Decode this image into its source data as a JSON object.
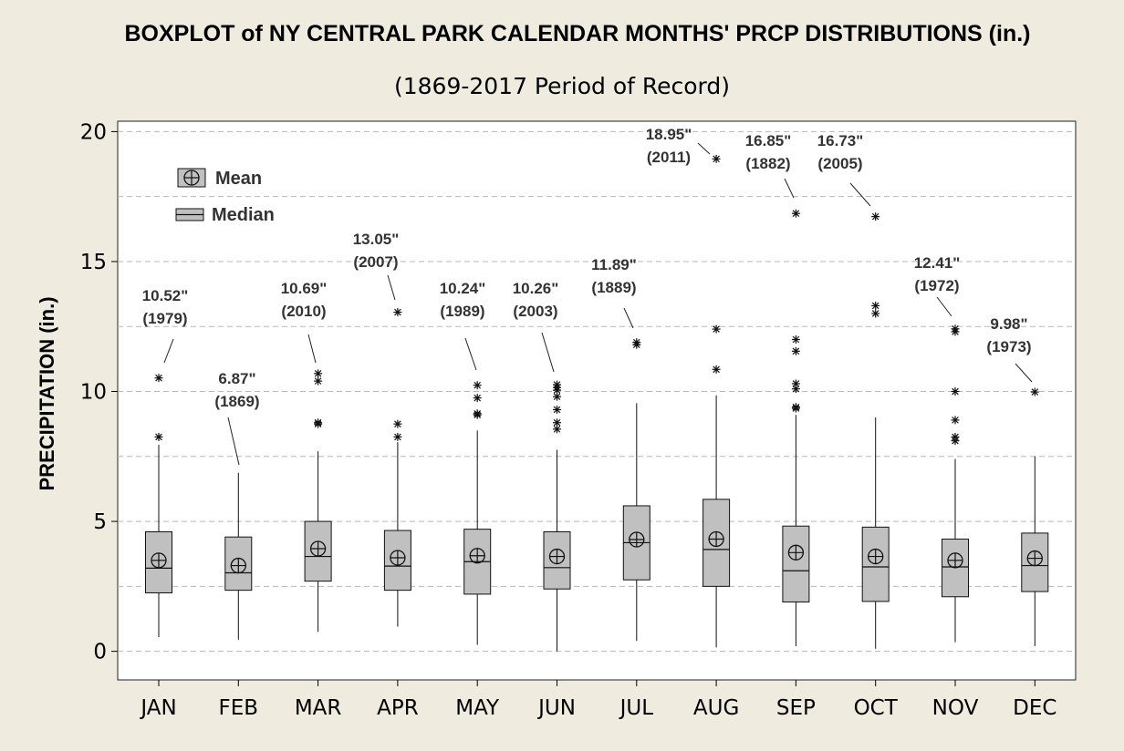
{
  "chart_data": {
    "type": "boxplot",
    "title": "BOXPLOT of NY CENTRAL PARK CALENDAR MONTHS' PRCP DISTRIBUTIONS (in.)",
    "subtitle": "(1869-2017 Period of Record)",
    "xlabel": "",
    "ylabel": "PRECIPITATION (in.)",
    "ylim": [
      -1.1,
      20.4
    ],
    "yticks": [
      0,
      5,
      10,
      15,
      20
    ],
    "grid": "horizontal dashed",
    "legend_position": "top-left",
    "legend": [
      {
        "key": "mean",
        "label": "Mean"
      },
      {
        "key": "median",
        "label": "Median"
      }
    ],
    "colors": {
      "box_fill": "#c0c0c0",
      "plot_bg": "#ffffff",
      "page_bg": "#efebdf",
      "gridline": "#b8b8b8",
      "annotation": "#333333"
    },
    "categories": [
      "JAN",
      "FEB",
      "MAR",
      "APR",
      "MAY",
      "JUN",
      "JUL",
      "AUG",
      "SEP",
      "OCT",
      "NOV",
      "DEC"
    ],
    "boxes": [
      {
        "month": "JAN",
        "whisker_low": 0.55,
        "q1": 2.25,
        "median": 3.2,
        "q3": 4.6,
        "whisker_high": 7.95,
        "mean": 3.5,
        "outliers": [
          8.25,
          10.52
        ]
      },
      {
        "month": "FEB",
        "whisker_low": 0.45,
        "q1": 2.35,
        "median": 3.02,
        "q3": 4.4,
        "whisker_high": 6.87,
        "mean": 3.3,
        "outliers": []
      },
      {
        "month": "MAR",
        "whisker_low": 0.75,
        "q1": 2.7,
        "median": 3.65,
        "q3": 5.0,
        "whisker_high": 7.7,
        "mean": 3.95,
        "outliers": [
          8.75,
          8.8,
          10.4,
          10.69
        ]
      },
      {
        "month": "APR",
        "whisker_low": 0.95,
        "q1": 2.35,
        "median": 3.28,
        "q3": 4.65,
        "whisker_high": 8.05,
        "mean": 3.6,
        "outliers": [
          8.25,
          8.75,
          13.05
        ]
      },
      {
        "month": "MAY",
        "whisker_low": 0.25,
        "q1": 2.2,
        "median": 3.45,
        "q3": 4.7,
        "whisker_high": 8.5,
        "mean": 3.68,
        "outliers": [
          9.1,
          9.15,
          9.75,
          10.24
        ]
      },
      {
        "month": "JUN",
        "whisker_low": 0.0,
        "q1": 2.4,
        "median": 3.22,
        "q3": 4.6,
        "whisker_high": 7.75,
        "mean": 3.65,
        "outliers": [
          8.55,
          8.8,
          9.3,
          9.8,
          10.05,
          10.15,
          10.26
        ]
      },
      {
        "month": "JUL",
        "whisker_low": 0.4,
        "q1": 2.75,
        "median": 4.18,
        "q3": 5.6,
        "whisker_high": 9.55,
        "mean": 4.3,
        "outliers": [
          11.8,
          11.89
        ]
      },
      {
        "month": "AUG",
        "whisker_low": 0.15,
        "q1": 2.5,
        "median": 3.92,
        "q3": 5.85,
        "whisker_high": 9.85,
        "mean": 4.32,
        "outliers": [
          10.85,
          12.4,
          18.95
        ]
      },
      {
        "month": "SEP",
        "whisker_low": 0.2,
        "q1": 1.9,
        "median": 3.1,
        "q3": 4.82,
        "whisker_high": 9.1,
        "mean": 3.8,
        "outliers": [
          9.35,
          9.4,
          10.1,
          10.3,
          11.55,
          12.0,
          16.85
        ]
      },
      {
        "month": "OCT",
        "whisker_low": 0.1,
        "q1": 1.92,
        "median": 3.25,
        "q3": 4.78,
        "whisker_high": 9.0,
        "mean": 3.65,
        "outliers": [
          13.0,
          13.3,
          16.73
        ]
      },
      {
        "month": "NOV",
        "whisker_low": 0.35,
        "q1": 2.1,
        "median": 3.25,
        "q3": 4.32,
        "whisker_high": 7.4,
        "mean": 3.5,
        "outliers": [
          8.1,
          8.25,
          8.9,
          10.0,
          12.3,
          12.41
        ]
      },
      {
        "month": "DEC",
        "whisker_low": 0.2,
        "q1": 2.3,
        "median": 3.3,
        "q3": 4.55,
        "whisker_high": 7.5,
        "mean": 3.58,
        "outliers": [
          9.98
        ]
      }
    ],
    "annotations": [
      {
        "month": "JAN",
        "value": "10.52\"",
        "year": "(1979)"
      },
      {
        "month": "FEB",
        "value": "6.87\"",
        "year": "(1869)"
      },
      {
        "month": "MAR",
        "value": "10.69\"",
        "year": "(2010)"
      },
      {
        "month": "APR",
        "value": "13.05\"",
        "year": "(2007)"
      },
      {
        "month": "MAY",
        "value": "10.24\"",
        "year": "(1989)"
      },
      {
        "month": "JUN",
        "value": "10.26\"",
        "year": "(2003)"
      },
      {
        "month": "JUL",
        "value": "11.89\"",
        "year": "(1889)"
      },
      {
        "month": "AUG",
        "value": "18.95\"",
        "year": "(2011)"
      },
      {
        "month": "SEP",
        "value": "16.85\"",
        "year": "(1882)"
      },
      {
        "month": "OCT",
        "value": "16.73\"",
        "year": "(2005)"
      },
      {
        "month": "NOV",
        "value": "12.41\"",
        "year": "(1972)"
      },
      {
        "month": "DEC",
        "value": "9.98\"",
        "year": "(1973)"
      }
    ]
  }
}
